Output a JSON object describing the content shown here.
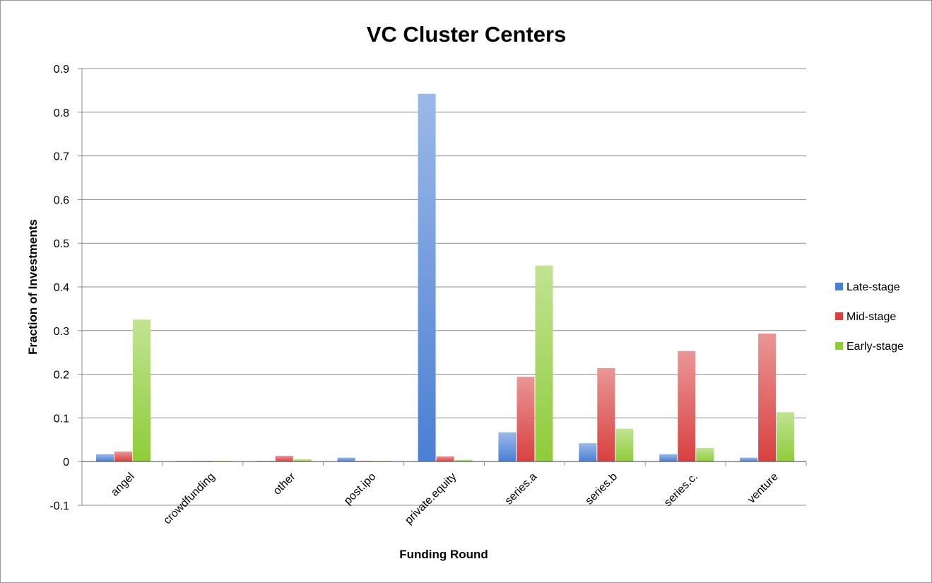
{
  "chart_data": {
    "type": "bar",
    "title": "VC Cluster Centers",
    "xlabel": "Funding Round",
    "ylabel": "Fraction of Investments",
    "ylim": [
      -0.1,
      0.9
    ],
    "yticks": [
      "0.9",
      "0.8",
      "0.7",
      "0.6",
      "0.5",
      "0.4",
      "0.3",
      "0.2",
      "0.1",
      "0",
      "-0.1"
    ],
    "grid": true,
    "legend_position": "right",
    "categories": [
      "angel",
      "crowdfunding",
      "other",
      "post.ipo",
      "private.equity",
      "series.a",
      "series.b",
      "series.c.",
      "venture"
    ],
    "series": [
      {
        "name": "Late-stage",
        "color": "#4a7fd4",
        "values": [
          0.017,
          0.0,
          0.0,
          0.009,
          0.842,
          0.067,
          0.042,
          0.017,
          0.009
        ]
      },
      {
        "name": "Mid-stage",
        "color": "#d94040",
        "values": [
          0.023,
          0.0,
          0.013,
          0.0,
          0.012,
          0.194,
          0.214,
          0.253,
          0.293
        ]
      },
      {
        "name": "Early-stage",
        "color": "#8fcc3a",
        "values": [
          0.325,
          0.0,
          0.005,
          0.0,
          0.004,
          0.449,
          0.075,
          0.031,
          0.113
        ]
      }
    ]
  }
}
